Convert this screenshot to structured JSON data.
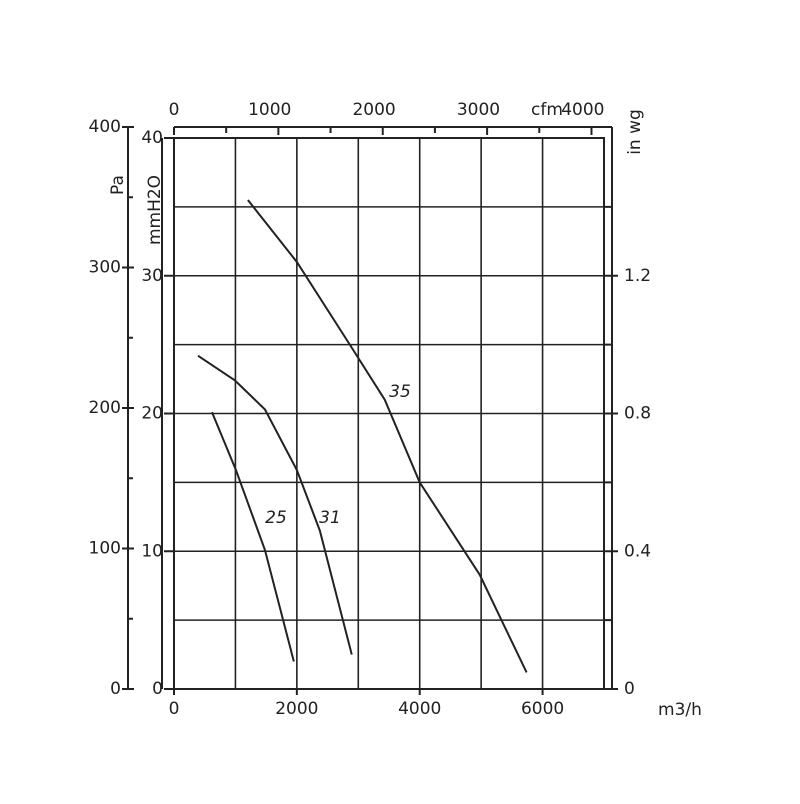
{
  "chart_data": {
    "type": "line",
    "x_label": "m3/h",
    "xlim": [
      0,
      7000
    ],
    "xticks": [
      0,
      2000,
      4000,
      6000
    ],
    "xgrid": [
      1000,
      2000,
      3000,
      4000,
      5000,
      6000
    ],
    "y_label": "mmH2O",
    "ylim": [
      0,
      40
    ],
    "yticks": [
      0,
      10,
      20,
      30,
      40
    ],
    "ygrid": [
      5,
      10,
      15,
      20,
      25,
      30,
      35
    ],
    "pa_label": "Pa",
    "palim": [
      0,
      400
    ],
    "paticks": [
      0,
      100,
      200,
      300,
      400
    ],
    "paminor": [
      50,
      150,
      250,
      350
    ],
    "y2_label": "in wg",
    "y2lim": [
      0,
      1.6
    ],
    "y2ticks": [
      0,
      0.4,
      0.8,
      1.2
    ],
    "y2minor": [
      0.2,
      0.6,
      1.0,
      1.4
    ],
    "x2_label": "cfm",
    "x2lim": [
      0,
      4120
    ],
    "x2ticks": [
      0,
      1000,
      2000,
      3000,
      4000
    ],
    "x2minor": [
      500,
      1500,
      2500,
      3500
    ],
    "series": [
      {
        "name": "35",
        "color": "#222222",
        "x": [
          1203,
          2000,
          2862,
          3431,
          4000,
          4976,
          5740
        ],
        "values": [
          35.5,
          31.0,
          25.0,
          21.0,
          15.0,
          8.3,
          1.2
        ]
      },
      {
        "name": "31",
        "color": "#222222",
        "x": [
          390,
          992,
          1480,
          2000,
          2374,
          2894
        ],
        "values": [
          24.2,
          22.4,
          20.3,
          15.9,
          11.5,
          2.5
        ]
      },
      {
        "name": "25",
        "color": "#222222",
        "x": [
          618,
          1008,
          1480,
          1951
        ],
        "values": [
          20.1,
          15.9,
          10.1,
          2.0
        ]
      }
    ]
  }
}
